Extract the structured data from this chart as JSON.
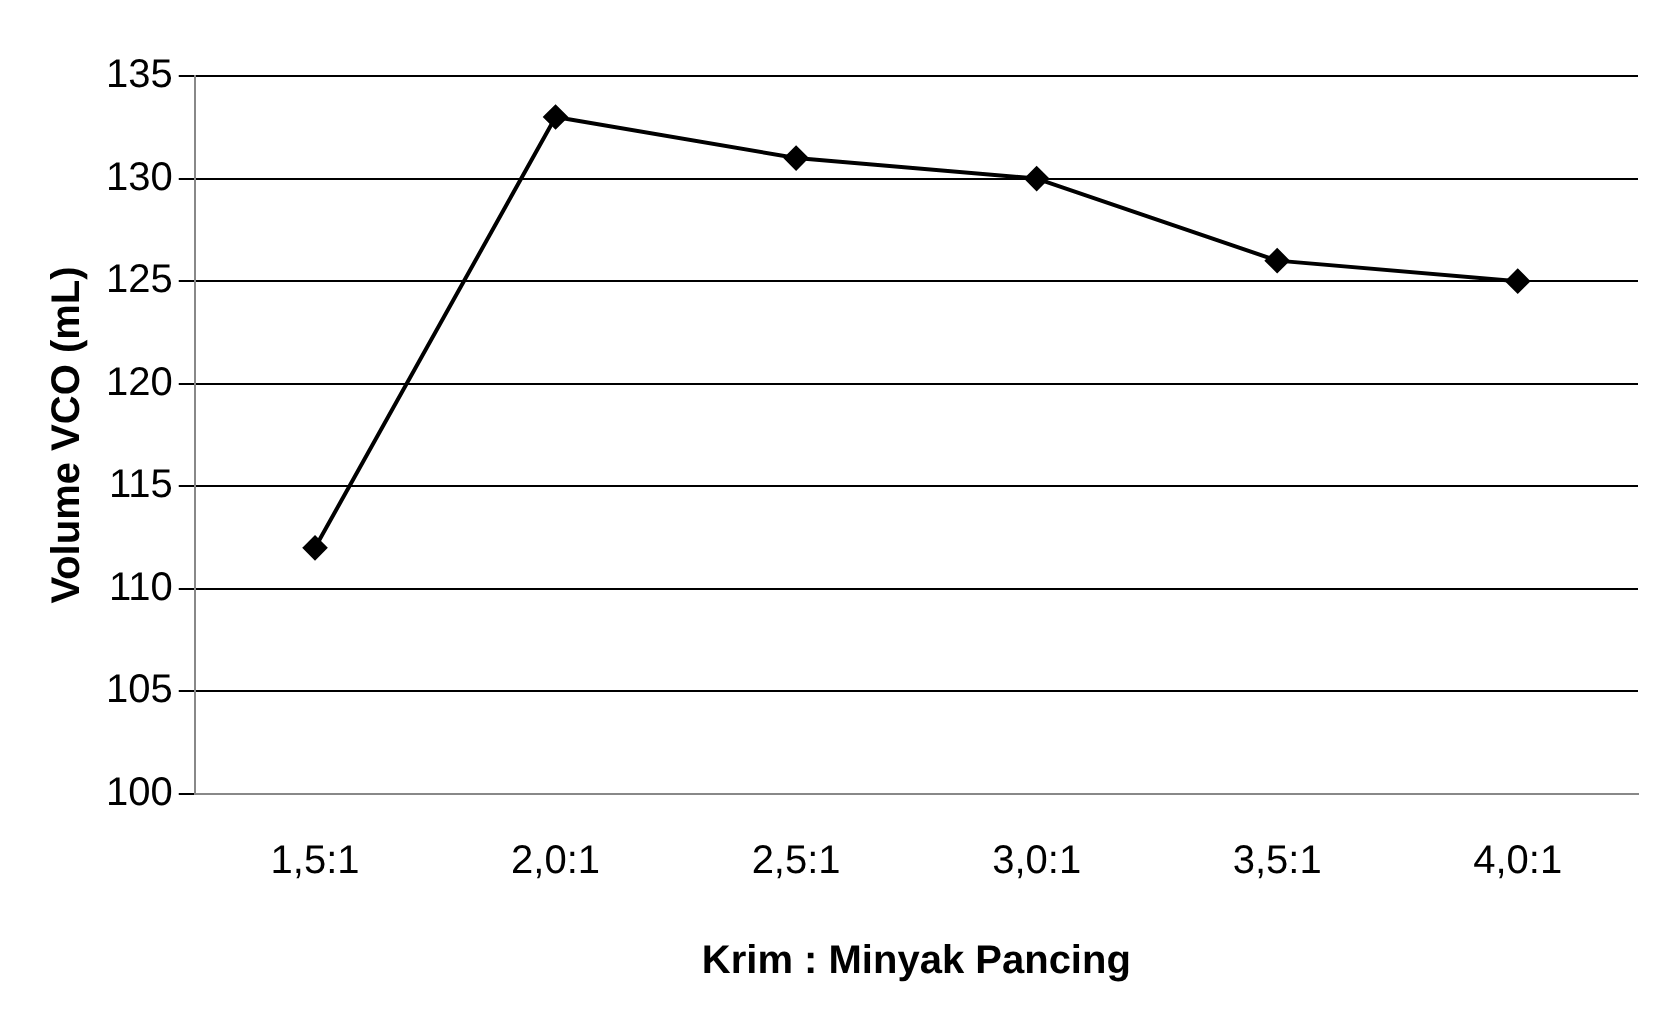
{
  "chart_data": {
    "type": "line",
    "xlabel": "Krim : Minyak Pancing",
    "ylabel": "Volume VCO (mL)",
    "categories": [
      "1,5:1",
      "2,0:1",
      "2,5:1",
      "3,0:1",
      "3,5:1",
      "4,0:1"
    ],
    "series": [
      {
        "color": "#000000",
        "values": [
          112,
          133,
          131,
          130,
          126,
          125
        ]
      }
    ],
    "ylim": [
      100,
      135
    ],
    "yticks": [
      100,
      105,
      110,
      115,
      120,
      125,
      130,
      135
    ],
    "grid": "y",
    "marker": "diamond",
    "legend": false,
    "line_style": "solid"
  }
}
